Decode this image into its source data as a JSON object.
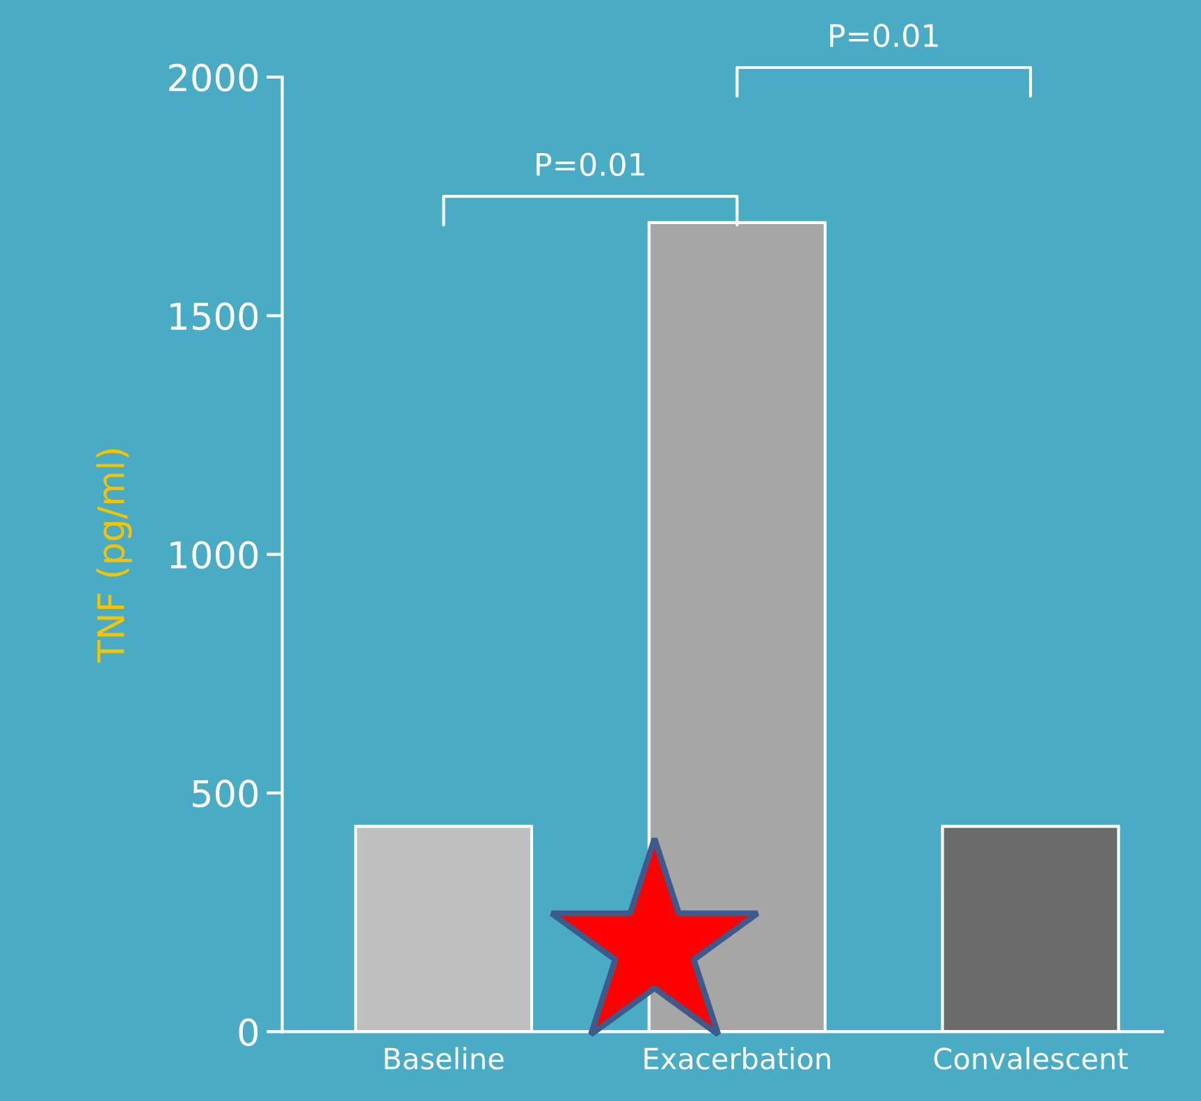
{
  "chart_data": {
    "type": "bar",
    "ylabel": "TNF (pg/ml)",
    "categories": [
      "Baseline",
      "Exacerbation",
      "Convalescent"
    ],
    "values": [
      430,
      1695,
      430
    ],
    "colors": [
      "#c0c0c0",
      "#a6a6a6",
      "#6b6b6b"
    ],
    "ylim": [
      0,
      2000
    ],
    "yticks": [
      0,
      500,
      1000,
      1500,
      2000
    ],
    "grid": false,
    "annotations": [
      "P=0.01",
      "P=0.01"
    ]
  }
}
